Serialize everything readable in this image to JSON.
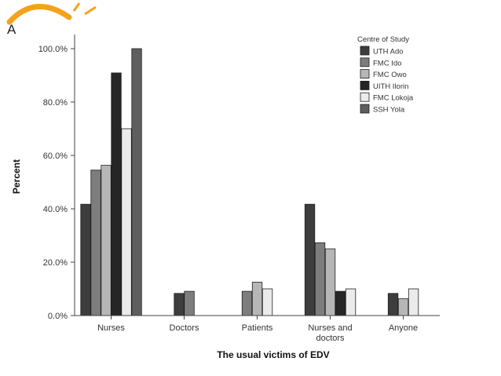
{
  "panel_label": "A",
  "colors": {
    "logo_orange": "#f5a21b"
  },
  "chart_data": {
    "type": "bar",
    "xlabel": "The usual victims of EDV",
    "ylabel": "Percent",
    "ylim": [
      0,
      100
    ],
    "yticks": [
      "0.0%",
      "20.0%",
      "40.0%",
      "60.0%",
      "80.0%",
      "100.0%"
    ],
    "categories": [
      "Nurses",
      "Doctors",
      "Patients",
      "Nurses and\ndoctors",
      "Anyone"
    ],
    "legend_title": "Centre of Study",
    "legend_position": "top-right",
    "grid": false,
    "series": [
      {
        "name": "UTH Ado",
        "color": "#3d3d3d",
        "values": [
          41.7,
          8.3,
          null,
          41.7,
          8.3
        ]
      },
      {
        "name": "FMC Ido",
        "color": "#7d7d7d",
        "values": [
          54.5,
          9.1,
          9.1,
          27.3,
          null
        ]
      },
      {
        "name": "FMC Owo",
        "color": "#b6b6b6",
        "values": [
          56.3,
          null,
          12.5,
          25.0,
          6.3
        ]
      },
      {
        "name": "UITH Ilorin",
        "color": "#262626",
        "values": [
          90.9,
          null,
          null,
          9.1,
          null
        ]
      },
      {
        "name": "FMC Lokoja",
        "color": "#ebebeb",
        "values": [
          70.0,
          null,
          10.0,
          10.0,
          10.0
        ]
      },
      {
        "name": "SSH Yola",
        "color": "#5e5e5e",
        "values": [
          100.0,
          null,
          null,
          null,
          null
        ]
      }
    ]
  }
}
